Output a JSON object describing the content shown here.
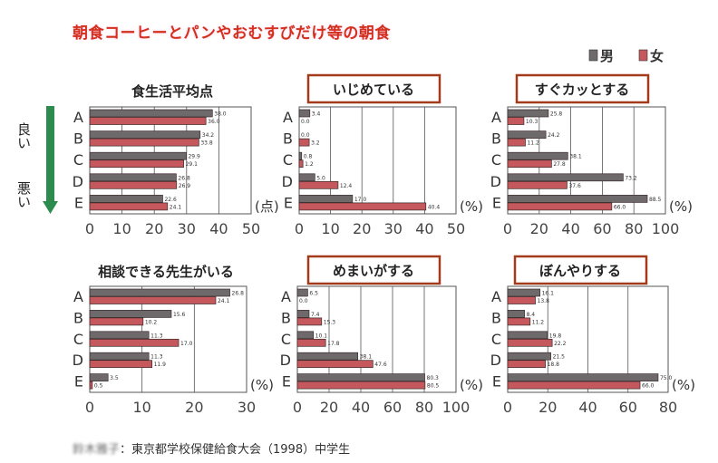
{
  "title": "朝食コーヒーとパンやおむすびだけ等の朝食",
  "legend": {
    "male": "男",
    "female": "女",
    "male_color": "#6e6a6c",
    "female_color": "#c4585c"
  },
  "side_labels": {
    "good": "良い",
    "bad": "悪い",
    "arrow_color": "#2e8b4e"
  },
  "footer": {
    "author": "鈴木雅子",
    "source": "：東京都学校保健給食大会（1998）中学生"
  },
  "chart_data": [
    {
      "type": "bar",
      "title": "食生活平均点",
      "boxed": false,
      "unit": "(点)",
      "categories": [
        "A",
        "B",
        "C",
        "D",
        "E"
      ],
      "xlim": [
        0,
        50
      ],
      "ticks": [
        "0",
        "10",
        "20",
        "30",
        "40",
        "50"
      ],
      "series": [
        {
          "name": "男",
          "values": [
            38.0,
            34.2,
            29.9,
            26.8,
            22.6
          ],
          "labels": [
            "38.0",
            "34.2",
            "29.9",
            "26.8",
            "22.6"
          ]
        },
        {
          "name": "女",
          "values": [
            36.0,
            33.8,
            29.1,
            26.9,
            24.1
          ],
          "labels": [
            "36.0",
            "33.8",
            "29.1",
            "26.9",
            "24.1"
          ]
        }
      ]
    },
    {
      "type": "bar",
      "title": "いじめている",
      "boxed": true,
      "unit": "(%)",
      "categories": [
        "A",
        "B",
        "C",
        "D",
        "E"
      ],
      "xlim": [
        0,
        50
      ],
      "ticks": [
        "0",
        "10",
        "20",
        "30",
        "40",
        "50"
      ],
      "series": [
        {
          "name": "男",
          "values": [
            3.4,
            0.0,
            0.8,
            5.0,
            17.0
          ],
          "labels": [
            "3.4",
            "0.0",
            "0.8",
            "5.0",
            "17.0"
          ]
        },
        {
          "name": "女",
          "values": [
            0.0,
            3.2,
            1.2,
            12.4,
            40.4
          ],
          "labels": [
            "0.0",
            "3.2",
            "1.2",
            "12.4",
            "40.4"
          ]
        }
      ]
    },
    {
      "type": "bar",
      "title": "すぐカッとする",
      "boxed": true,
      "unit": "(%)",
      "categories": [
        "A",
        "B",
        "C",
        "D",
        "E"
      ],
      "xlim": [
        0,
        100
      ],
      "ticks": [
        "0",
        "20",
        "40",
        "60",
        "80",
        "100"
      ],
      "series": [
        {
          "name": "男",
          "values": [
            25.8,
            24.2,
            38.1,
            73.2,
            88.5
          ],
          "labels": [
            "25.8",
            "24.2",
            "38.1",
            "73.2",
            "88.5"
          ]
        },
        {
          "name": "女",
          "values": [
            10.3,
            11.2,
            27.8,
            37.6,
            66.0
          ],
          "labels": [
            "10.3",
            "11.2",
            "27.8",
            "37.6",
            "66.0"
          ]
        }
      ]
    },
    {
      "type": "bar",
      "title": "相談できる先生がいる",
      "boxed": false,
      "unit": "(%)",
      "categories": [
        "A",
        "B",
        "C",
        "D",
        "E"
      ],
      "xlim": [
        0,
        30
      ],
      "ticks": [
        "0",
        "10",
        "20",
        "30"
      ],
      "series": [
        {
          "name": "男",
          "values": [
            26.8,
            15.6,
            11.3,
            11.3,
            3.5
          ],
          "labels": [
            "26.8",
            "15.6",
            "11.3",
            "11.3",
            "3.5"
          ]
        },
        {
          "name": "女",
          "values": [
            24.1,
            10.2,
            17.0,
            11.9,
            0.5
          ],
          "labels": [
            "24.1",
            "10.2",
            "17.0",
            "11.9",
            "0.5"
          ]
        }
      ]
    },
    {
      "type": "bar",
      "title": "めまいがする",
      "boxed": true,
      "unit": "(%)",
      "categories": [
        "A",
        "B",
        "C",
        "D",
        "E"
      ],
      "xlim": [
        0,
        100
      ],
      "ticks": [
        "0",
        "20",
        "40",
        "60",
        "80",
        "100"
      ],
      "series": [
        {
          "name": "男",
          "values": [
            6.5,
            7.4,
            10.1,
            38.1,
            80.3
          ],
          "labels": [
            "6.5",
            "7.4",
            "10.1",
            "38.1",
            "80.3"
          ]
        },
        {
          "name": "女",
          "values": [
            0.0,
            15.3,
            17.8,
            47.6,
            80.5
          ],
          "labels": [
            "0.0",
            "15.3",
            "17.8",
            "47.6",
            "80.5"
          ]
        }
      ]
    },
    {
      "type": "bar",
      "title": "ぼんやりする",
      "boxed": true,
      "unit": "(%)",
      "categories": [
        "A",
        "B",
        "C",
        "D",
        "E"
      ],
      "xlim": [
        0,
        80
      ],
      "ticks": [
        "0",
        "20",
        "40",
        "60",
        "80"
      ],
      "series": [
        {
          "name": "男",
          "values": [
            16.1,
            8.4,
            19.8,
            21.5,
            75.0
          ],
          "labels": [
            "16.1",
            "8.4",
            "19.8",
            "21.5",
            "75.0"
          ]
        },
        {
          "name": "女",
          "values": [
            13.8,
            11.2,
            22.2,
            18.8,
            66.0
          ],
          "labels": [
            "13.8",
            "11.2",
            "22.2",
            "18.8",
            "66.0"
          ]
        }
      ]
    }
  ]
}
